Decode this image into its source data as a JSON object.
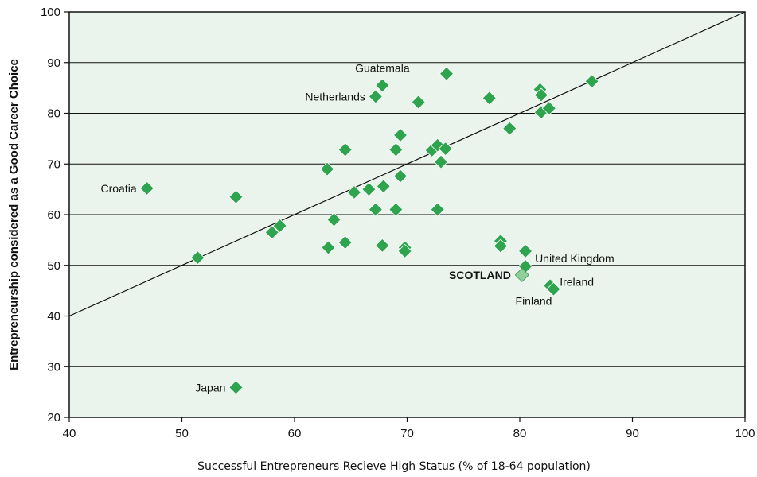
{
  "chart_data": {
    "type": "scatter",
    "title": "",
    "xlabel": "Successful Entrepreneurs Recieve High Status (% of 18-64 population)",
    "ylabel": "Entrepreneurship considered as a Good Career Choice",
    "xlim": [
      40,
      100
    ],
    "ylim": [
      20,
      100
    ],
    "xticks": [
      40,
      50,
      60,
      70,
      80,
      90,
      100
    ],
    "yticks": [
      20,
      30,
      40,
      50,
      60,
      70,
      80,
      90,
      100
    ],
    "grid": "horizontal",
    "reference_line": {
      "from": [
        40,
        40
      ],
      "to": [
        100,
        100
      ]
    },
    "colors": {
      "background": "#eaf4ec",
      "marker": "#2ea44f",
      "marker_highlight": "#8fd19a",
      "axis": "#111111",
      "grid": "#111111"
    },
    "points": [
      {
        "x": 46.9,
        "y": 65.2,
        "label": "Croatia"
      },
      {
        "x": 51.4,
        "y": 51.5
      },
      {
        "x": 54.8,
        "y": 63.5
      },
      {
        "x": 54.8,
        "y": 25.9,
        "label": "Japan"
      },
      {
        "x": 58.0,
        "y": 56.5
      },
      {
        "x": 58.7,
        "y": 57.8
      },
      {
        "x": 62.9,
        "y": 69.0
      },
      {
        "x": 63.0,
        "y": 53.5
      },
      {
        "x": 63.5,
        "y": 59.0
      },
      {
        "x": 64.5,
        "y": 72.8
      },
      {
        "x": 64.5,
        "y": 54.5
      },
      {
        "x": 65.3,
        "y": 64.4
      },
      {
        "x": 66.6,
        "y": 65.0
      },
      {
        "x": 67.2,
        "y": 83.3,
        "label": "Netherlands"
      },
      {
        "x": 67.2,
        "y": 61.0
      },
      {
        "x": 67.8,
        "y": 85.5,
        "label": "Guatemala"
      },
      {
        "x": 67.9,
        "y": 65.6
      },
      {
        "x": 67.8,
        "y": 53.9
      },
      {
        "x": 69.0,
        "y": 72.8
      },
      {
        "x": 69.0,
        "y": 61.0
      },
      {
        "x": 69.4,
        "y": 75.7
      },
      {
        "x": 69.4,
        "y": 67.6
      },
      {
        "x": 69.8,
        "y": 53.5
      },
      {
        "x": 69.8,
        "y": 52.8
      },
      {
        "x": 71.0,
        "y": 82.2
      },
      {
        "x": 72.2,
        "y": 72.7
      },
      {
        "x": 72.7,
        "y": 73.7
      },
      {
        "x": 73.0,
        "y": 70.4
      },
      {
        "x": 72.7,
        "y": 61.0
      },
      {
        "x": 73.4,
        "y": 73.0
      },
      {
        "x": 73.5,
        "y": 87.8
      },
      {
        "x": 77.3,
        "y": 83.0
      },
      {
        "x": 78.3,
        "y": 54.8
      },
      {
        "x": 78.3,
        "y": 53.8
      },
      {
        "x": 79.1,
        "y": 77.0
      },
      {
        "x": 80.5,
        "y": 52.8
      },
      {
        "x": 80.5,
        "y": 49.8,
        "label": "United Kingdom"
      },
      {
        "x": 80.2,
        "y": 48.1,
        "label": "SCOTLAND",
        "highlight": true
      },
      {
        "x": 81.8,
        "y": 84.7
      },
      {
        "x": 81.9,
        "y": 83.6
      },
      {
        "x": 81.9,
        "y": 80.2
      },
      {
        "x": 82.6,
        "y": 81.0
      },
      {
        "x": 82.7,
        "y": 46.0,
        "label": "Ireland"
      },
      {
        "x": 83.0,
        "y": 45.3,
        "label": "Finland"
      },
      {
        "x": 86.4,
        "y": 86.3
      }
    ]
  }
}
